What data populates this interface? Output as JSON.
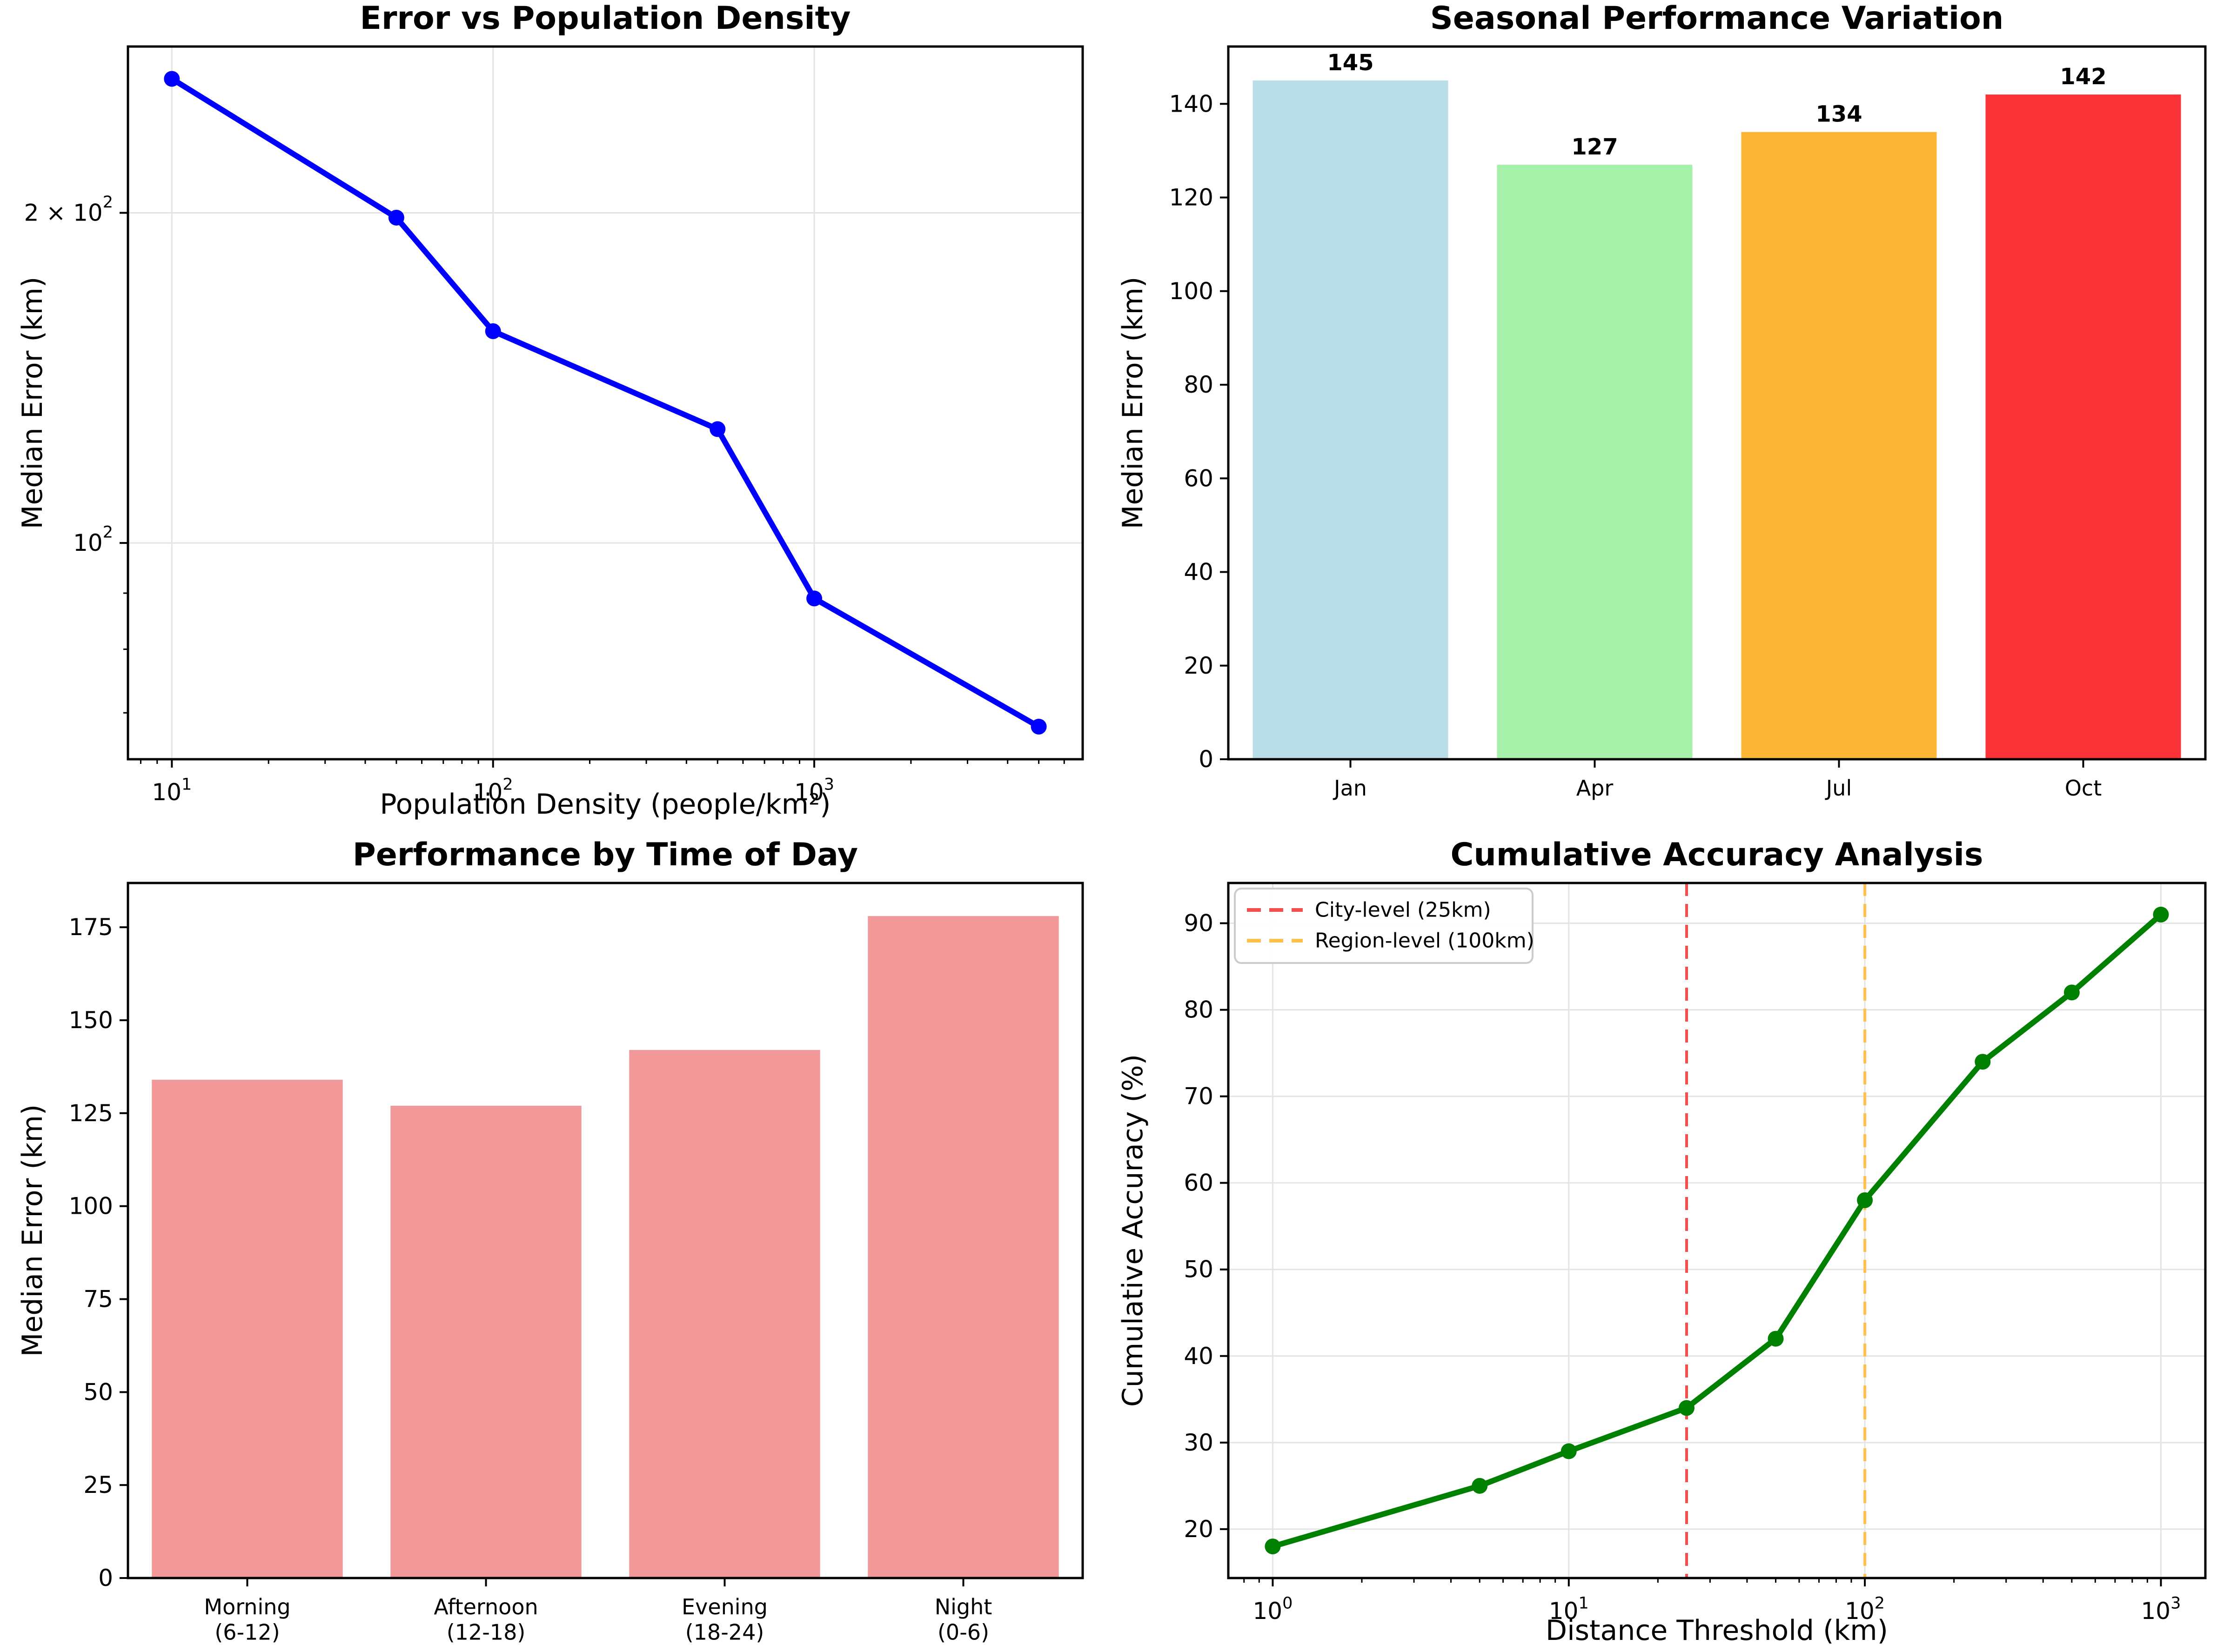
{
  "figure": {
    "background": "#ffffff",
    "grid_color": "#e4e4e4",
    "spine_color": "#000000"
  },
  "chart_data": [
    {
      "type": "line",
      "title": "Error vs Population Density",
      "xlabel": "Population Density (people/km²)",
      "ylabel": "Median Error (km)",
      "xscale": "log",
      "yscale": "log",
      "x": [
        10,
        50,
        100,
        500,
        1000,
        5000
      ],
      "y": [
        265,
        198,
        156,
        127,
        89,
        68
      ],
      "color": "#0000ff",
      "xlim": [
        7.3,
        6850
      ],
      "ylim": [
        63.5,
        283.6
      ],
      "xticks": [
        {
          "v": 10,
          "label": "10^1"
        },
        {
          "v": 100,
          "label": "10^2"
        },
        {
          "v": 1000,
          "label": "10^3"
        }
      ],
      "yticks": [
        {
          "v": 100,
          "label": "10^2"
        },
        {
          "v": 200,
          "label": "2 × 10^2"
        }
      ],
      "grid": true
    },
    {
      "type": "bar",
      "title": "Seasonal Performance Variation",
      "xlabel": "",
      "ylabel": "Median Error (km)",
      "categories": [
        [
          "Jan"
        ],
        [
          "Apr"
        ],
        [
          "Jul"
        ],
        [
          "Oct"
        ]
      ],
      "values": [
        145,
        127,
        134,
        142
      ],
      "colors": [
        "#badee8",
        "#a6f0a9",
        "#fdb535",
        "#fb3338"
      ],
      "value_labels": [
        "145",
        "127",
        "134",
        "142"
      ],
      "xlim": [
        -0.5,
        3.5
      ],
      "ylim": [
        0,
        152.25
      ],
      "yticks": [
        {
          "v": 0,
          "label": "0"
        },
        {
          "v": 20,
          "label": "20"
        },
        {
          "v": 40,
          "label": "40"
        },
        {
          "v": 60,
          "label": "60"
        },
        {
          "v": 80,
          "label": "80"
        },
        {
          "v": 100,
          "label": "100"
        },
        {
          "v": 120,
          "label": "120"
        },
        {
          "v": 140,
          "label": "140"
        }
      ],
      "grid": false
    },
    {
      "type": "bar",
      "title": "Performance by Time of Day",
      "xlabel": "",
      "ylabel": "Median Error (km)",
      "categories": [
        [
          "Morning",
          "(6-12)"
        ],
        [
          "Afternoon",
          "(12-18)"
        ],
        [
          "Evening",
          "(18-24)"
        ],
        [
          "Night",
          "(0-6)"
        ]
      ],
      "values": [
        134,
        127,
        142,
        178
      ],
      "colors": [
        "#f29899",
        "#f29899",
        "#f29899",
        "#f29899"
      ],
      "value_labels": null,
      "xlim": [
        -0.5,
        3.5
      ],
      "ylim": [
        0,
        186.9
      ],
      "yticks": [
        {
          "v": 0,
          "label": "0"
        },
        {
          "v": 25,
          "label": "25"
        },
        {
          "v": 50,
          "label": "50"
        },
        {
          "v": 75,
          "label": "75"
        },
        {
          "v": 100,
          "label": "100"
        },
        {
          "v": 125,
          "label": "125"
        },
        {
          "v": 150,
          "label": "150"
        },
        {
          "v": 175,
          "label": "175"
        }
      ],
      "grid": false
    },
    {
      "type": "line",
      "title": "Cumulative Accuracy Analysis",
      "xlabel": "Distance Threshold (km)",
      "ylabel": "Cumulative Accuracy (%)",
      "xscale": "log",
      "x": [
        1,
        5,
        10,
        25,
        50,
        100,
        250,
        500,
        1000
      ],
      "y": [
        18,
        25,
        29,
        34,
        42,
        58,
        74,
        82,
        91
      ],
      "color": "#008000",
      "xlim": [
        0.708,
        1413
      ],
      "ylim": [
        14.35,
        94.65
      ],
      "xticks": [
        {
          "v": 1,
          "label": "10^0"
        },
        {
          "v": 10,
          "label": "10^1"
        },
        {
          "v": 100,
          "label": "10^2"
        },
        {
          "v": 1000,
          "label": "10^3"
        }
      ],
      "yticks": [
        {
          "v": 20,
          "label": "20"
        },
        {
          "v": 30,
          "label": "30"
        },
        {
          "v": 40,
          "label": "40"
        },
        {
          "v": 50,
          "label": "50"
        },
        {
          "v": 60,
          "label": "60"
        },
        {
          "v": 70,
          "label": "70"
        },
        {
          "v": 80,
          "label": "80"
        },
        {
          "v": 90,
          "label": "90"
        }
      ],
      "vlines": [
        {
          "x": 25,
          "color": "#f34f4f",
          "label": "City-level (25km)",
          "name": "city-threshold-line"
        },
        {
          "x": 100,
          "color": "#ffc04d",
          "label": "Region-level (100km)",
          "name": "region-threshold-line"
        }
      ],
      "legend": true,
      "grid": true
    }
  ]
}
